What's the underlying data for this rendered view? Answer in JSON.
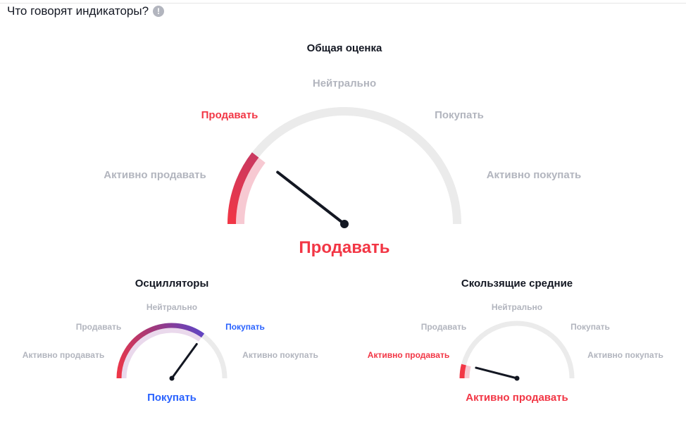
{
  "header": {
    "title": "Что говорят индикаторы?",
    "info_icon": "info-icon"
  },
  "colors": {
    "sell": "#f23645",
    "buy": "#2962ff",
    "neutral": "#b2b5be",
    "track": "#ebebeb",
    "needle": "#131722"
  },
  "gauges": [
    {
      "id": "summary",
      "title": "Общая оценка",
      "labels": {
        "strong_sell": "Активно продавать",
        "sell": "Продавать",
        "neutral": "Нейтрально",
        "buy": "Покупать",
        "strong_buy": "Активно покупать"
      },
      "active_label": "sell",
      "result": "Продавать",
      "result_tone": "sell",
      "value": 0.21
    },
    {
      "id": "oscillators",
      "title": "Осцилляторы",
      "labels": {
        "strong_sell": "Активно продавать",
        "sell": "Продавать",
        "neutral": "Нейтрально",
        "buy": "Покупать",
        "strong_buy": "Активно покупать"
      },
      "active_label": "buy",
      "result": "Покупать",
      "result_tone": "buy",
      "value": 0.7
    },
    {
      "id": "moving_averages",
      "title": "Скользящие средние",
      "labels": {
        "strong_sell": "Активно продавать",
        "sell": "Продавать",
        "neutral": "Нейтрально",
        "buy": "Покупать",
        "strong_buy": "Активно покупать"
      },
      "active_label": "strong_sell",
      "result": "Активно продавать",
      "result_tone": "sell",
      "value": 0.08
    }
  ]
}
